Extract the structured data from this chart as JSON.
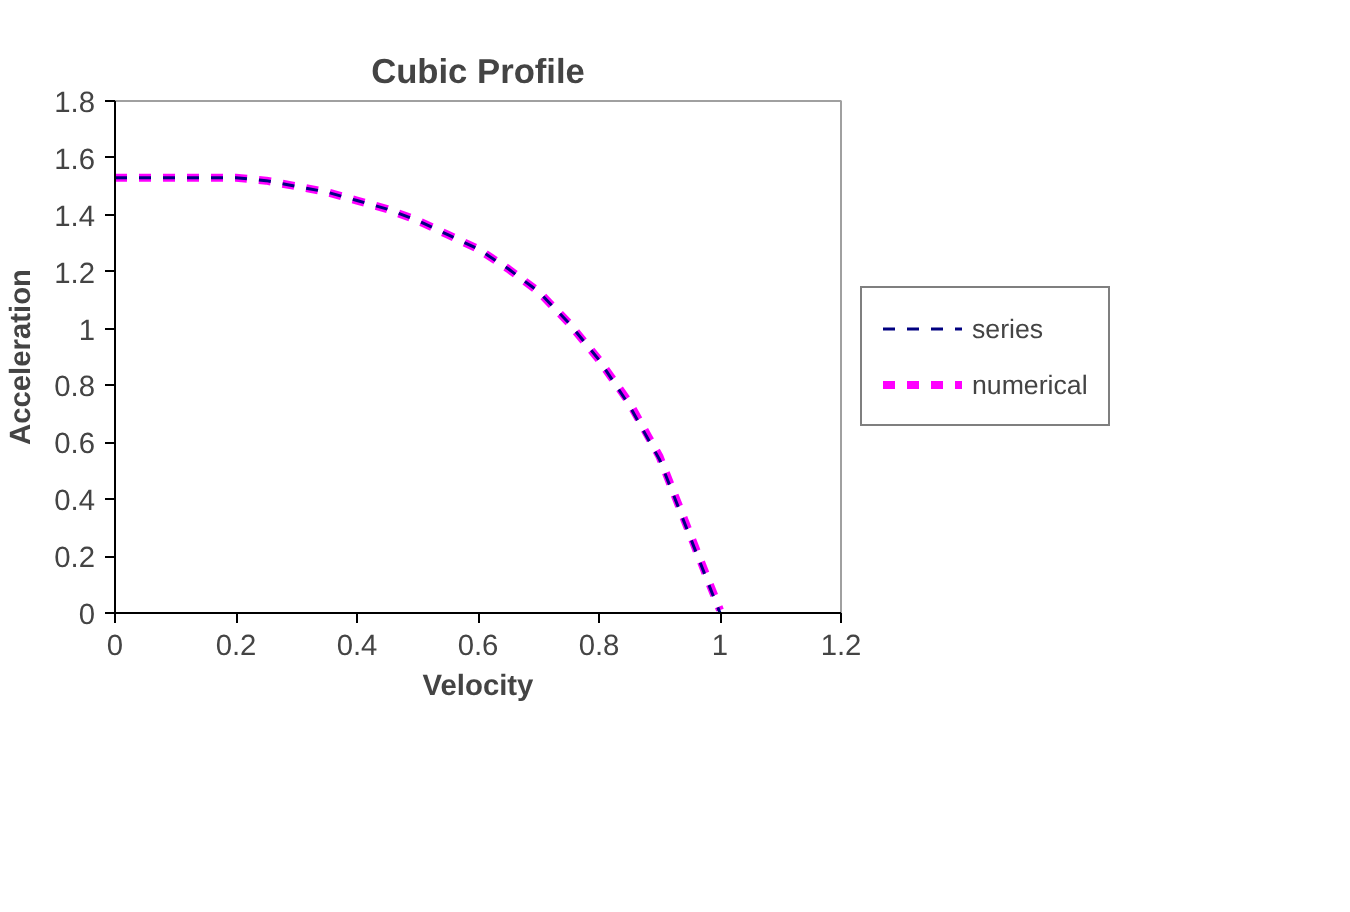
{
  "chart_data": {
    "type": "line",
    "title": "Cubic Profile",
    "xlabel": "Velocity",
    "ylabel": "Acceleration",
    "x": [
      0,
      0.1,
      0.2,
      0.25,
      0.3,
      0.35,
      0.4,
      0.45,
      0.5,
      0.55,
      0.6,
      0.65,
      0.7,
      0.75,
      0.8,
      0.85,
      0.9,
      0.95,
      1.0
    ],
    "series": [
      {
        "name": "series",
        "color": "#000080",
        "line_style": "dashed",
        "values": [
          1.53,
          1.53,
          1.53,
          1.52,
          1.5,
          1.48,
          1.45,
          1.42,
          1.38,
          1.33,
          1.28,
          1.21,
          1.13,
          1.02,
          0.89,
          0.73,
          0.54,
          0.27,
          0
        ]
      },
      {
        "name": "numerical",
        "color": "#ff00ff",
        "line_style": "dashed",
        "values": [
          1.53,
          1.53,
          1.53,
          1.52,
          1.5,
          1.48,
          1.45,
          1.42,
          1.38,
          1.33,
          1.28,
          1.21,
          1.13,
          1.02,
          0.89,
          0.74,
          0.55,
          0.28,
          0.01
        ]
      }
    ],
    "xlim": [
      0,
      1.2
    ],
    "xticks": [
      0,
      0.2,
      0.4,
      0.6,
      0.8,
      1,
      1.2
    ],
    "ylim": [
      0,
      1.8
    ],
    "yticks": [
      0,
      0.2,
      0.4,
      0.6,
      0.8,
      1,
      1.2,
      1.4,
      1.6,
      1.8
    ],
    "grid": false,
    "legend": "right",
    "marker": "none"
  }
}
